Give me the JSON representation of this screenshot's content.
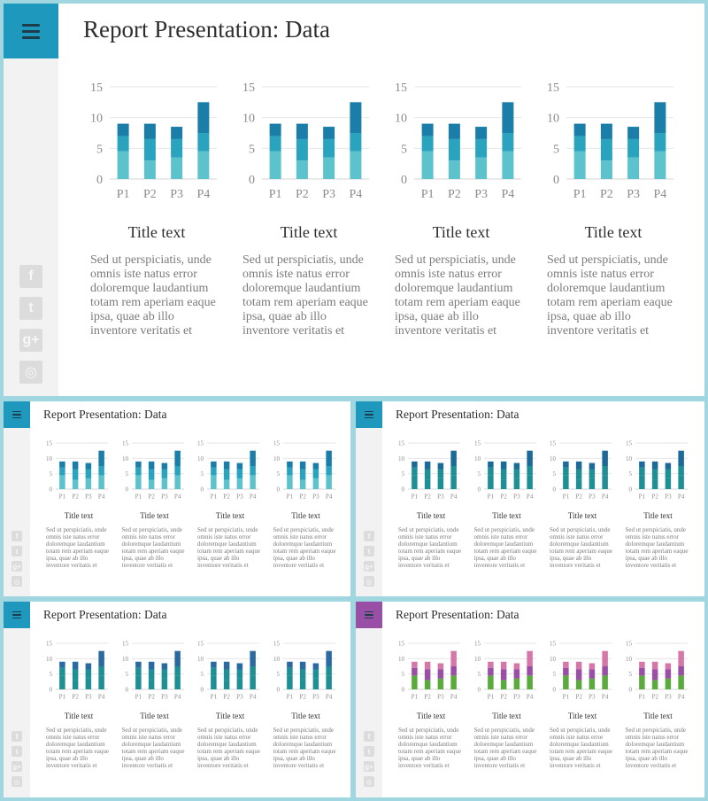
{
  "presentation": {
    "title": "Report Presentation: Data",
    "social_icons": [
      "facebook-icon",
      "twitter-icon",
      "google-plus-icon",
      "instagram-icon"
    ],
    "social_glyphs": [
      "f",
      "t",
      "g+",
      "◎"
    ]
  },
  "panel_text": {
    "title": "Title text",
    "body": "Sed ut perspiciatis, unde omnis iste natus error doloremque laudantium totam rem aperiam eaque ipsa, quae ab illo inventore veritatis et"
  },
  "chart_data": [
    {
      "type": "bar",
      "stacked": true,
      "categories": [
        "P1",
        "P2",
        "P3",
        "P4"
      ],
      "ylim": [
        0,
        15
      ],
      "yticks": [
        0,
        5,
        10,
        15
      ],
      "grid": true,
      "series": [
        {
          "values": [
            4.5,
            3.0,
            3.5,
            4.5
          ]
        },
        {
          "values": [
            2.5,
            3.5,
            3.0,
            3.0
          ]
        },
        {
          "values": [
            2.0,
            2.5,
            2.0,
            5.0
          ]
        }
      ]
    }
  ],
  "variants": [
    {
      "name": "large-teal",
      "accent": "#1f98bd",
      "colors": [
        "#5cc2cc",
        "#2aa3bf",
        "#1a7ea8"
      ]
    },
    {
      "name": "small-teal",
      "accent": "#1f98bd",
      "colors": [
        "#5cc2cc",
        "#2aa3bf",
        "#1a7ea8"
      ]
    },
    {
      "name": "small-dark-teal",
      "accent": "#1f98bd",
      "colors": [
        "#1e8f95",
        "#1e8f95",
        "#1b6a98"
      ]
    },
    {
      "name": "small-teal-blue",
      "accent": "#1f98bd",
      "colors": [
        "#1e8f95",
        "#1e8f95",
        "#2a6aa0"
      ]
    },
    {
      "name": "small-purple",
      "accent": "#9a4fa6",
      "colors": [
        "#5aab3c",
        "#9a4fa6",
        "#d577a8"
      ]
    }
  ]
}
